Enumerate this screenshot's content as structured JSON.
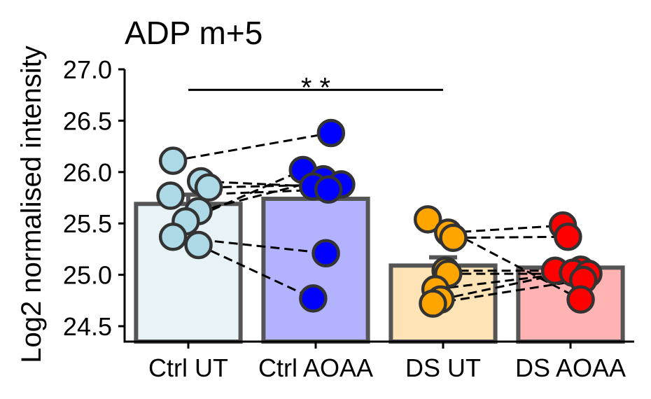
{
  "chart_data": {
    "type": "bar",
    "title": "ADP m+5",
    "ylabel": "Log2 normalised intensity",
    "xlabel": "",
    "ylim": [
      24.35,
      27.0
    ],
    "yticks": [
      24.5,
      25.0,
      25.5,
      26.0,
      26.5,
      27.0
    ],
    "ytick_labels": [
      "24.5",
      "25.0",
      "25.5",
      "26.0",
      "26.5",
      "27.0"
    ],
    "grid": false,
    "categories": [
      "Ctrl UT",
      "Ctrl AOAA",
      "DS UT",
      "DS AOAA"
    ],
    "values": [
      25.69,
      25.74,
      25.09,
      25.07
    ],
    "errors": [
      0.09,
      0.0,
      0.08,
      0.0
    ],
    "bar_colors": [
      "#e8f3f8",
      "#b2b2ff",
      "#fde3b5",
      "#ffb3b3"
    ],
    "point_colors": [
      "#add8e6",
      "#0000ff",
      "#ffa500",
      "#ff0000"
    ],
    "points": [
      [
        {
          "x": -0.12,
          "y": 26.11
        },
        {
          "x": 0.1,
          "y": 25.91
        },
        {
          "x": 0.16,
          "y": 25.85
        },
        {
          "x": -0.14,
          "y": 25.77
        },
        {
          "x": 0.08,
          "y": 25.62
        },
        {
          "x": -0.02,
          "y": 25.52
        },
        {
          "x": -0.12,
          "y": 25.37
        },
        {
          "x": 0.08,
          "y": 25.29
        }
      ],
      [
        {
          "x": 0.12,
          "y": 26.38
        },
        {
          "x": -0.1,
          "y": 26.02
        },
        {
          "x": 0.06,
          "y": 25.93
        },
        {
          "x": 0.2,
          "y": 25.88
        },
        {
          "x": -0.02,
          "y": 25.86
        },
        {
          "x": 0.1,
          "y": 25.83
        },
        {
          "x": 0.08,
          "y": 25.21
        },
        {
          "x": -0.02,
          "y": 24.77
        }
      ],
      [
        {
          "x": -0.12,
          "y": 25.54
        },
        {
          "x": 0.04,
          "y": 25.41
        },
        {
          "x": 0.08,
          "y": 25.36
        },
        {
          "x": 0.02,
          "y": 25.04
        },
        {
          "x": 0.04,
          "y": 25.01
        },
        {
          "x": -0.06,
          "y": 24.86
        },
        {
          "x": -0.02,
          "y": 24.76
        },
        {
          "x": -0.08,
          "y": 24.72
        }
      ],
      [
        {
          "x": -0.06,
          "y": 25.48
        },
        {
          "x": -0.02,
          "y": 25.37
        },
        {
          "x": 0.08,
          "y": 25.05
        },
        {
          "x": -0.12,
          "y": 25.04
        },
        {
          "x": 0.02,
          "y": 25.02
        },
        {
          "x": 0.14,
          "y": 25.01
        },
        {
          "x": 0.1,
          "y": 24.95
        },
        {
          "x": 0.08,
          "y": 24.76
        }
      ]
    ],
    "pairs": [
      {
        "from": 0,
        "to": 1,
        "links": [
          [
            0,
            0
          ],
          [
            1,
            4
          ],
          [
            2,
            3
          ],
          [
            3,
            5
          ],
          [
            4,
            2
          ],
          [
            5,
            1
          ],
          [
            6,
            6
          ],
          [
            7,
            7
          ]
        ]
      },
      {
        "from": 2,
        "to": 3,
        "links": [
          [
            0,
            7
          ],
          [
            1,
            0
          ],
          [
            2,
            1
          ],
          [
            3,
            3
          ],
          [
            4,
            5
          ],
          [
            5,
            4
          ],
          [
            6,
            2
          ],
          [
            7,
            6
          ]
        ]
      }
    ],
    "significance": {
      "from": 0,
      "to": 2,
      "label": "* *",
      "y": 26.8
    }
  }
}
